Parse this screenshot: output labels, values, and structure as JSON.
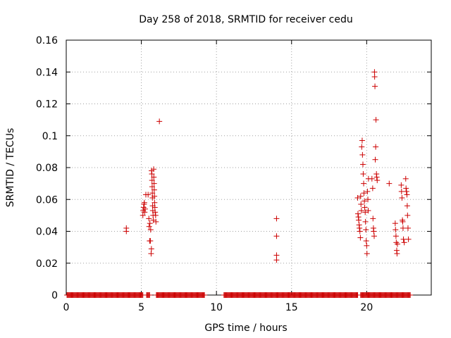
{
  "chart_data": {
    "type": "scatter",
    "title": "Day 258 of 2018, SRMTID for receiver cedu",
    "xlabel": "GPS time / hours",
    "ylabel": "SRMTID / TECUs",
    "xlim": [
      0,
      24.3
    ],
    "ylim": [
      0,
      0.16
    ],
    "xticks": [
      0,
      5,
      10,
      15,
      20
    ],
    "xtick_labels": [
      "0",
      "5",
      "10",
      "15",
      "20"
    ],
    "yticks": [
      0,
      0.02,
      0.04,
      0.06,
      0.08,
      0.1,
      0.12,
      0.14,
      0.16
    ],
    "ytick_labels": [
      "0",
      "0.02",
      "0.04",
      "0.06",
      "0.08",
      "0.1",
      "0.12",
      "0.14",
      "0.16"
    ],
    "grid": true,
    "marker": "plus",
    "color": "#cc0000",
    "zero_runs": [
      [
        0.05,
        5.1
      ],
      [
        5.35,
        5.55
      ],
      [
        6.0,
        9.2
      ],
      [
        10.5,
        19.4
      ],
      [
        19.6,
        22.9
      ]
    ],
    "zero_step": 0.05,
    "series": [
      {
        "name": "SRMTID",
        "points": [
          [
            4.0,
            0.042
          ],
          [
            4.0,
            0.04
          ],
          [
            5.1,
            0.05
          ],
          [
            5.12,
            0.053
          ],
          [
            5.15,
            0.055
          ],
          [
            5.18,
            0.057
          ],
          [
            5.2,
            0.058
          ],
          [
            5.22,
            0.052
          ],
          [
            5.25,
            0.054
          ],
          [
            5.3,
            0.063
          ],
          [
            5.45,
            0.063
          ],
          [
            5.5,
            0.048
          ],
          [
            5.52,
            0.043
          ],
          [
            5.55,
            0.034
          ],
          [
            5.57,
            0.045
          ],
          [
            5.6,
            0.034
          ],
          [
            5.62,
            0.041
          ],
          [
            5.65,
            0.026
          ],
          [
            5.67,
            0.029
          ],
          [
            5.68,
            0.078
          ],
          [
            5.7,
            0.076
          ],
          [
            5.71,
            0.072
          ],
          [
            5.72,
            0.068
          ],
          [
            5.73,
            0.064
          ],
          [
            5.74,
            0.061
          ],
          [
            5.75,
            0.056
          ],
          [
            5.76,
            0.053
          ],
          [
            5.78,
            0.05
          ],
          [
            5.8,
            0.047
          ],
          [
            5.82,
            0.079
          ],
          [
            5.83,
            0.074
          ],
          [
            5.85,
            0.07
          ],
          [
            5.86,
            0.066
          ],
          [
            5.87,
            0.062
          ],
          [
            5.88,
            0.058
          ],
          [
            5.9,
            0.055
          ],
          [
            5.92,
            0.052
          ],
          [
            5.95,
            0.05
          ],
          [
            5.97,
            0.046
          ],
          [
            6.2,
            0.109
          ],
          [
            14.0,
            0.048
          ],
          [
            14.0,
            0.037
          ],
          [
            14.0,
            0.025
          ],
          [
            14.0,
            0.022
          ],
          [
            19.4,
            0.061
          ],
          [
            19.42,
            0.051
          ],
          [
            19.45,
            0.049
          ],
          [
            19.47,
            0.047
          ],
          [
            19.5,
            0.044
          ],
          [
            19.52,
            0.042
          ],
          [
            19.55,
            0.04
          ],
          [
            19.58,
            0.036
          ],
          [
            19.6,
            0.062
          ],
          [
            19.62,
            0.057
          ],
          [
            19.65,
            0.053
          ],
          [
            19.67,
            0.093
          ],
          [
            19.7,
            0.097
          ],
          [
            19.72,
            0.088
          ],
          [
            19.75,
            0.082
          ],
          [
            19.77,
            0.076
          ],
          [
            19.8,
            0.07
          ],
          [
            19.82,
            0.064
          ],
          [
            19.85,
            0.059
          ],
          [
            19.87,
            0.055
          ],
          [
            19.9,
            0.052
          ],
          [
            19.92,
            0.046
          ],
          [
            19.95,
            0.041
          ],
          [
            19.97,
            0.034
          ],
          [
            20.0,
            0.031
          ],
          [
            20.02,
            0.026
          ],
          [
            20.05,
            0.065
          ],
          [
            20.08,
            0.06
          ],
          [
            20.1,
            0.053
          ],
          [
            20.12,
            0.073
          ],
          [
            20.35,
            0.073
          ],
          [
            20.4,
            0.067
          ],
          [
            20.42,
            0.048
          ],
          [
            20.45,
            0.042
          ],
          [
            20.47,
            0.04
          ],
          [
            20.5,
            0.037
          ],
          [
            20.52,
            0.14
          ],
          [
            20.53,
            0.137
          ],
          [
            20.55,
            0.131
          ],
          [
            20.57,
            0.085
          ],
          [
            20.6,
            0.093
          ],
          [
            20.62,
            0.11
          ],
          [
            20.65,
            0.076
          ],
          [
            20.67,
            0.074
          ],
          [
            20.7,
            0.072
          ],
          [
            21.5,
            0.07
          ],
          [
            21.9,
            0.045
          ],
          [
            21.92,
            0.041
          ],
          [
            21.95,
            0.037
          ],
          [
            21.97,
            0.033
          ],
          [
            22.0,
            0.028
          ],
          [
            22.02,
            0.026
          ],
          [
            22.05,
            0.032
          ],
          [
            22.3,
            0.069
          ],
          [
            22.32,
            0.065
          ],
          [
            22.35,
            0.061
          ],
          [
            22.38,
            0.047
          ],
          [
            22.4,
            0.046
          ],
          [
            22.42,
            0.042
          ],
          [
            22.45,
            0.035
          ],
          [
            22.5,
            0.033
          ],
          [
            22.6,
            0.073
          ],
          [
            22.62,
            0.067
          ],
          [
            22.65,
            0.065
          ],
          [
            22.68,
            0.063
          ],
          [
            22.7,
            0.056
          ],
          [
            22.72,
            0.05
          ],
          [
            22.75,
            0.042
          ],
          [
            22.78,
            0.035
          ]
        ]
      }
    ]
  }
}
